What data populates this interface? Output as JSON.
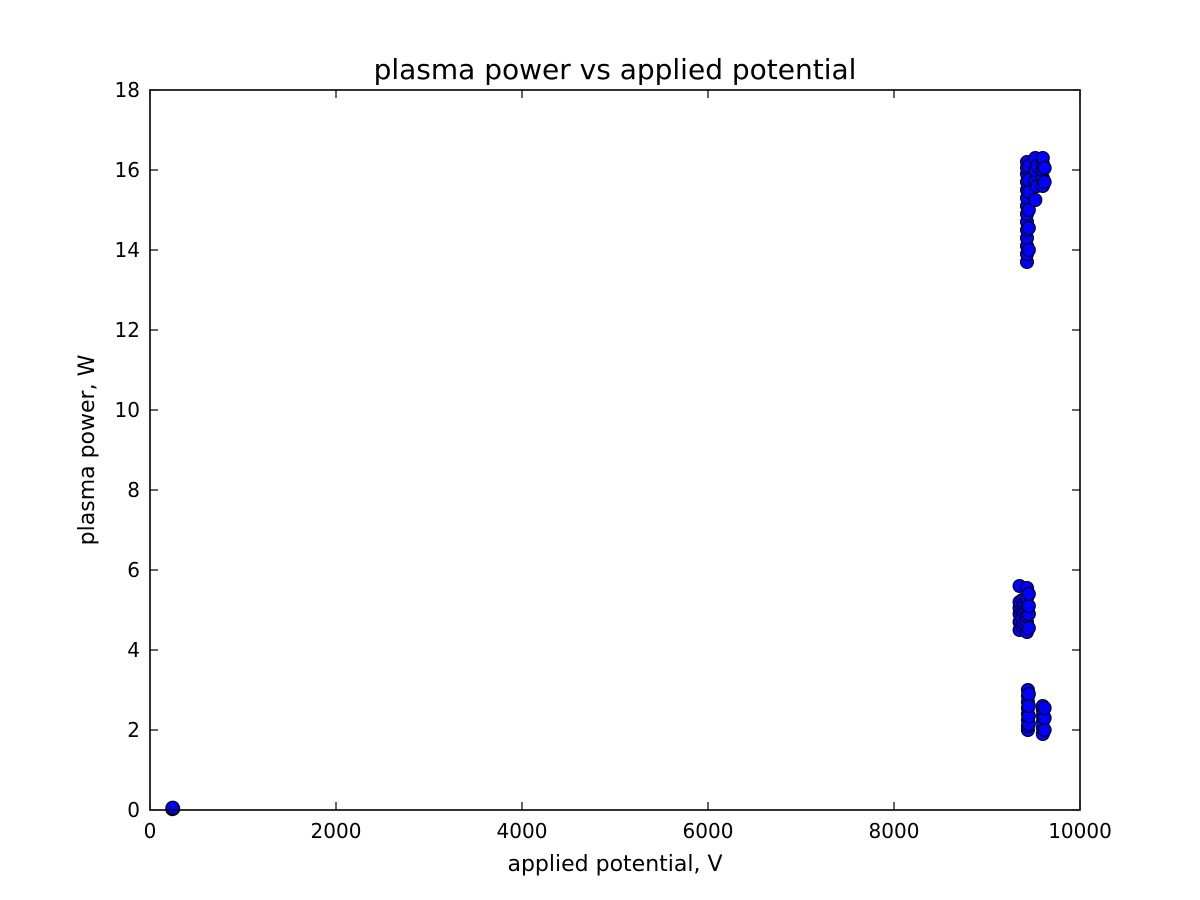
{
  "chart_data": {
    "type": "scatter",
    "title": "plasma power vs applied potential",
    "xlabel": "applied potential, V",
    "ylabel": "plasma power, W",
    "xlim": [
      0,
      10000
    ],
    "ylim": [
      0,
      18
    ],
    "xticks": [
      0,
      2000,
      4000,
      6000,
      8000,
      10000
    ],
    "yticks": [
      0,
      2,
      4,
      6,
      8,
      10,
      12,
      14,
      16,
      18
    ],
    "grid": false,
    "marker_color": "#0000ff",
    "series": [
      {
        "points": [
          [
            240,
            0.02
          ],
          [
            240,
            0.05
          ],
          [
            250,
            0.03
          ],
          [
            245,
            0.06
          ],
          [
            9350,
            4.5
          ],
          [
            9350,
            4.7
          ],
          [
            9350,
            4.9
          ],
          [
            9350,
            5.05
          ],
          [
            9350,
            5.2
          ],
          [
            9350,
            5.6
          ],
          [
            9380,
            4.6
          ],
          [
            9380,
            4.8
          ],
          [
            9380,
            5.0
          ],
          [
            9380,
            5.25
          ],
          [
            9400,
            4.65
          ],
          [
            9400,
            4.95
          ],
          [
            9400,
            5.15
          ],
          [
            9430,
            4.45
          ],
          [
            9430,
            4.7
          ],
          [
            9430,
            4.85
          ],
          [
            9430,
            5.0
          ],
          [
            9430,
            5.15
          ],
          [
            9430,
            5.3
          ],
          [
            9430,
            5.55
          ],
          [
            9450,
            4.55
          ],
          [
            9450,
            4.9
          ],
          [
            9450,
            5.1
          ],
          [
            9450,
            5.4
          ],
          [
            9440,
            2.0
          ],
          [
            9440,
            2.1
          ],
          [
            9440,
            2.25
          ],
          [
            9440,
            2.4
          ],
          [
            9440,
            2.55
          ],
          [
            9440,
            2.7
          ],
          [
            9440,
            2.85
          ],
          [
            9440,
            3.0
          ],
          [
            9450,
            2.15
          ],
          [
            9450,
            2.35
          ],
          [
            9450,
            2.6
          ],
          [
            9450,
            2.9
          ],
          [
            9600,
            1.9
          ],
          [
            9600,
            2.05
          ],
          [
            9600,
            2.2
          ],
          [
            9600,
            2.35
          ],
          [
            9600,
            2.5
          ],
          [
            9600,
            2.6
          ],
          [
            9620,
            2.0
          ],
          [
            9620,
            2.3
          ],
          [
            9620,
            2.55
          ],
          [
            9430,
            13.7
          ],
          [
            9430,
            13.9
          ],
          [
            9430,
            14.1
          ],
          [
            9430,
            14.3
          ],
          [
            9430,
            14.5
          ],
          [
            9430,
            14.7
          ],
          [
            9430,
            14.9
          ],
          [
            9430,
            15.1
          ],
          [
            9430,
            15.3
          ],
          [
            9430,
            15.5
          ],
          [
            9430,
            15.7
          ],
          [
            9430,
            15.9
          ],
          [
            9430,
            16.05
          ],
          [
            9430,
            16.2
          ],
          [
            9450,
            14.0
          ],
          [
            9450,
            14.55
          ],
          [
            9450,
            15.0
          ],
          [
            9450,
            15.45
          ],
          [
            9450,
            15.75
          ],
          [
            9450,
            16.1
          ],
          [
            9520,
            15.25
          ],
          [
            9520,
            15.7
          ],
          [
            9520,
            16.0
          ],
          [
            9520,
            16.3
          ],
          [
            9540,
            15.6
          ],
          [
            9540,
            16.1
          ],
          [
            9600,
            15.6
          ],
          [
            9600,
            15.8
          ],
          [
            9600,
            16.0
          ],
          [
            9600,
            16.15
          ],
          [
            9600,
            16.3
          ],
          [
            9620,
            15.7
          ],
          [
            9620,
            16.05
          ]
        ]
      }
    ]
  }
}
